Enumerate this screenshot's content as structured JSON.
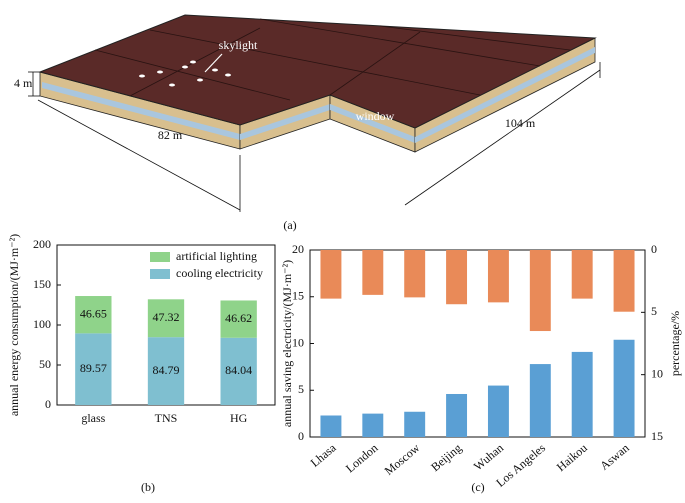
{
  "diagram": {
    "caption": "(a)",
    "skylight": "skylight",
    "window": "window",
    "height": "4 m",
    "width": "82 m",
    "length": "104 m"
  },
  "chart_data": [
    {
      "type": "stacked_bar",
      "caption": "(b)",
      "ylabel": "annual energy consumption/(MJ·m⁻²)",
      "categories": [
        "glass",
        "TNS",
        "HG"
      ],
      "series": [
        {
          "name": "cooling electricity",
          "color": "#7fbfd0",
          "values": [
            89.57,
            84.79,
            84.04
          ]
        },
        {
          "name": "artificial lighting",
          "color": "#8fd38a",
          "values": [
            46.65,
            47.32,
            46.62
          ]
        }
      ],
      "ylim": [
        0,
        200
      ],
      "yticks": [
        0,
        50,
        100,
        150,
        200
      ],
      "legend": "upper right"
    },
    {
      "type": "bar",
      "caption": "(c)",
      "ylabel": "annual saving electricity/(MJ·m⁻²)",
      "y2label": "percentage/%",
      "categories": [
        "Lhasa",
        "London",
        "Moscow",
        "Beijing",
        "Wuhan",
        "Los Angeles",
        "Haikou",
        "Aswan"
      ],
      "series": [
        {
          "color": "#5a9fd4",
          "values": [
            2.3,
            2.5,
            2.7,
            4.6,
            5.5,
            7.8,
            9.1,
            10.4
          ]
        },
        {
          "color": "#e98a58",
          "axis": "y2",
          "values": [
            3.9,
            3.6,
            3.8,
            4.35,
            4.2,
            6.5,
            3.9,
            4.95
          ]
        }
      ],
      "ylim": [
        0,
        20
      ],
      "yticks": [
        0,
        5,
        10,
        15,
        20
      ],
      "y2lim": [
        15,
        0
      ],
      "y2ticks": [
        0,
        5,
        10,
        15
      ]
    }
  ]
}
